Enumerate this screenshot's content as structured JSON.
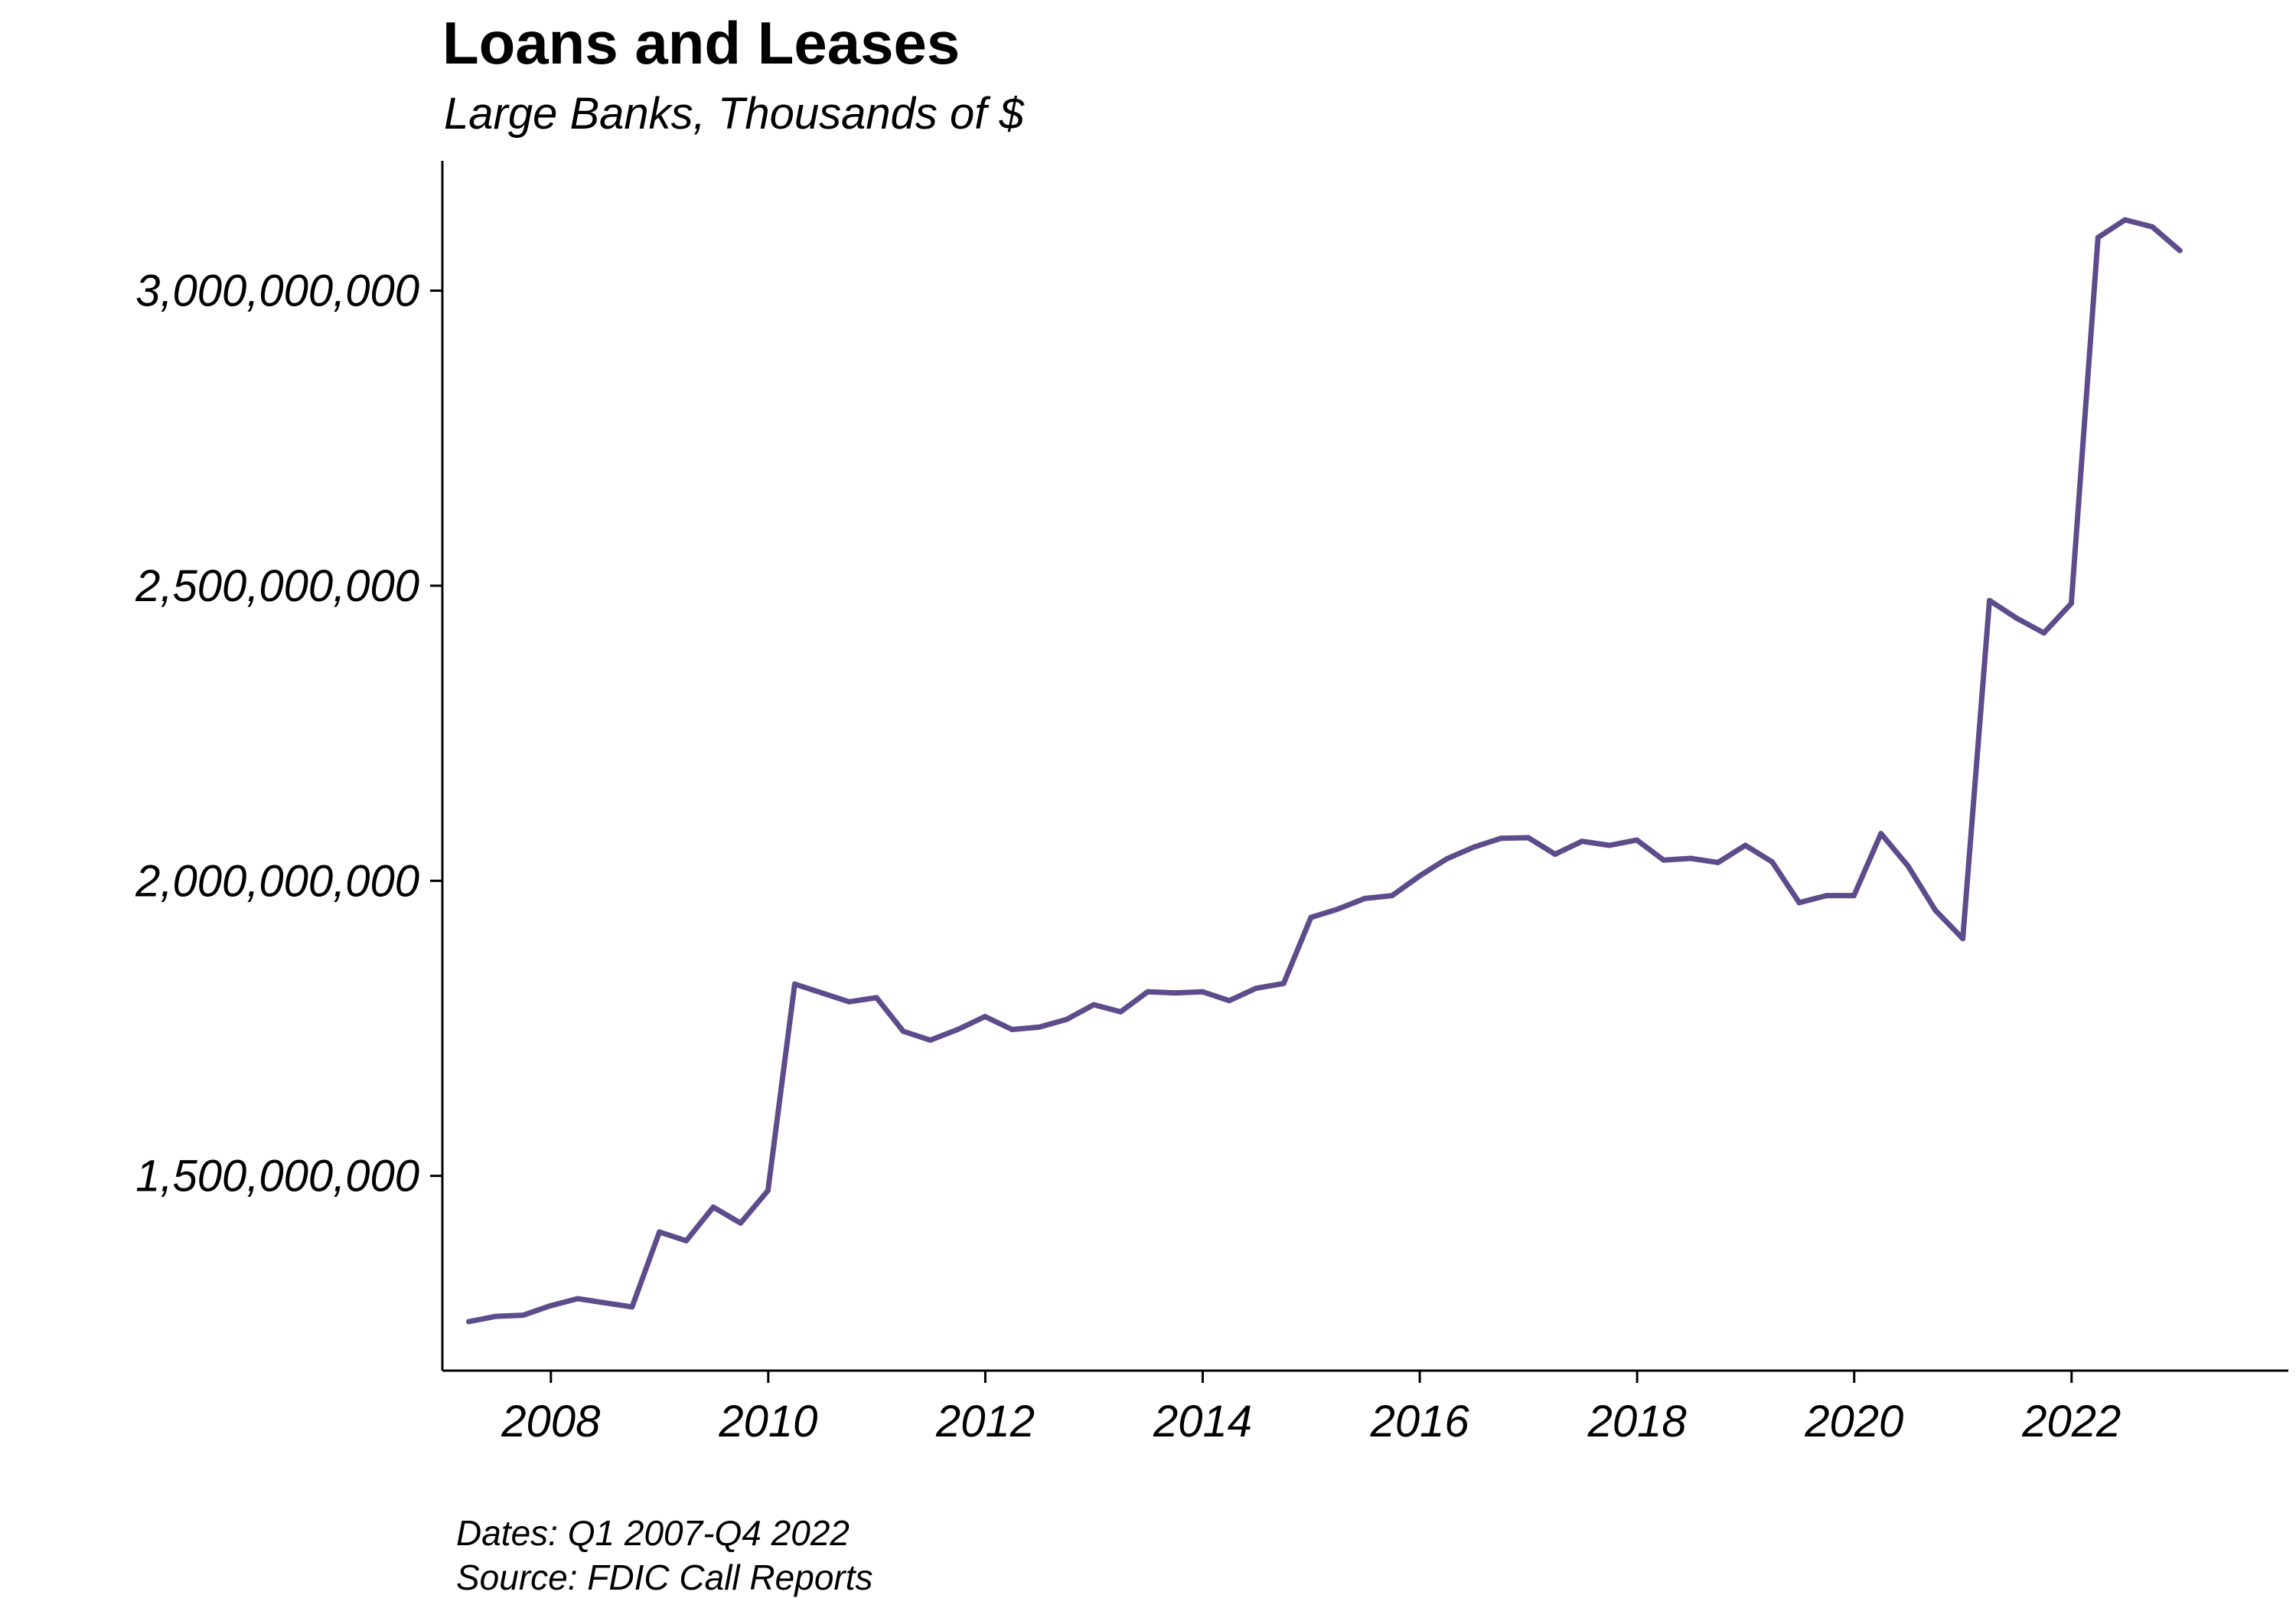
{
  "chart_data": {
    "type": "line",
    "title": "Loans and Leases",
    "subtitle": "Large Banks, Thousands of $",
    "caption": [
      "Dates: Q1 2007-Q4 2022",
      "Source: FDIC Call Reports"
    ],
    "xlabel": "",
    "ylabel": "",
    "grid": false,
    "legend": "none",
    "xlim": [
      "2007-01-01",
      "2023-12-31"
    ],
    "ylim": [
      1170000000,
      3220000000
    ],
    "x_ticks": [
      "2008",
      "2010",
      "2012",
      "2014",
      "2016",
      "2018",
      "2020",
      "2022"
    ],
    "y_ticks": [
      1500000000,
      2000000000,
      2500000000,
      3000000000
    ],
    "y_tick_labels": [
      "1,500,000,000",
      "2,000,000,000",
      "2,500,000,000",
      "3,000,000,000"
    ],
    "series_color": "#5e4b8b",
    "x": [
      "2007-03-31",
      "2007-06-30",
      "2007-09-30",
      "2007-12-31",
      "2008-03-31",
      "2008-06-30",
      "2008-09-30",
      "2008-12-31",
      "2009-03-31",
      "2009-06-30",
      "2009-09-30",
      "2009-12-31",
      "2010-03-31",
      "2010-06-30",
      "2010-09-30",
      "2010-12-31",
      "2011-03-31",
      "2011-06-30",
      "2011-09-30",
      "2011-12-31",
      "2012-03-31",
      "2012-06-30",
      "2012-09-30",
      "2012-12-31",
      "2013-03-31",
      "2013-06-30",
      "2013-09-30",
      "2013-12-31",
      "2014-03-31",
      "2014-06-30",
      "2014-09-30",
      "2014-12-31",
      "2015-03-31",
      "2015-06-30",
      "2015-09-30",
      "2015-12-31",
      "2016-03-31",
      "2016-06-30",
      "2016-09-30",
      "2016-12-31",
      "2017-03-31",
      "2017-06-30",
      "2017-09-30",
      "2017-12-31",
      "2018-03-31",
      "2018-06-30",
      "2018-09-30",
      "2018-12-31",
      "2019-03-31",
      "2019-06-30",
      "2019-09-30",
      "2019-12-31",
      "2020-03-31",
      "2020-06-30",
      "2020-09-30",
      "2020-12-31",
      "2021-03-31",
      "2021-06-30",
      "2021-09-30",
      "2021-12-31",
      "2022-03-31",
      "2022-06-30",
      "2022-09-30",
      "2022-12-31"
    ],
    "series": [
      {
        "values": [
          1253000000,
          1262000000,
          1264000000,
          1280000000,
          1292000000,
          1285000000,
          1278000000,
          1405000000,
          1390000000,
          1447000000,
          1420000000,
          1475000000,
          1825000000,
          1810000000,
          1795000000,
          1802000000,
          1745000000,
          1730000000,
          1748000000,
          1770000000,
          1748000000,
          1752000000,
          1765000000,
          1790000000,
          1778000000,
          1812000000,
          1810000000,
          1812000000,
          1797000000,
          1818000000,
          1826000000,
          1938000000,
          1952000000,
          1970000000,
          1975000000,
          2008000000,
          2037000000,
          2057000000,
          2072000000,
          2073000000,
          2045000000,
          2067000000,
          2060000000,
          2069000000,
          2035000000,
          2038000000,
          2031000000,
          2060000000,
          2032000000,
          1963000000,
          1975000000,
          1975000000,
          2080000000,
          2025000000,
          1950000000,
          1902000000,
          2475000000,
          2445000000,
          2420000000,
          2470000000,
          3090000000,
          3120000000,
          3108000000,
          3068000000
        ]
      }
    ]
  }
}
